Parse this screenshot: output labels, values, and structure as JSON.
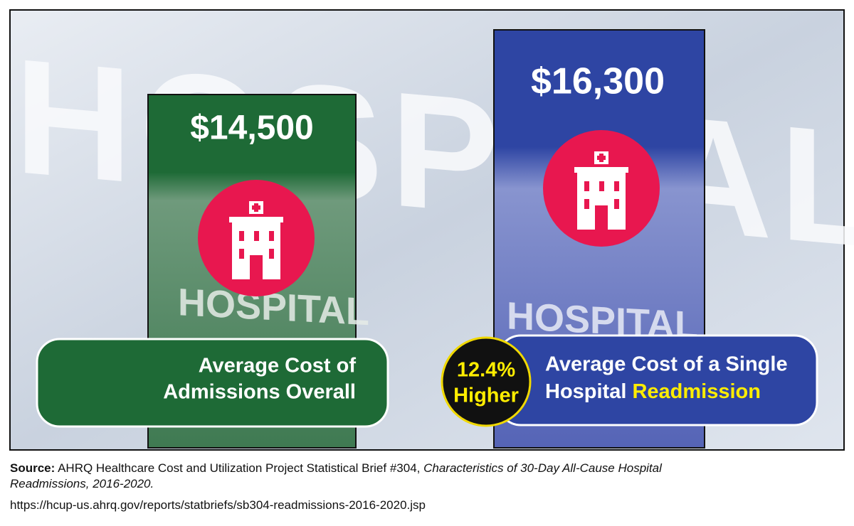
{
  "background_sign": "HOSPITAL",
  "panels": [
    {
      "amount": "$14,500",
      "label_lines": [
        "Average Cost of",
        "Admissions Overall"
      ]
    },
    {
      "amount": "$16,300",
      "label_lines": [
        "Average Cost of a Single",
        "Hospital"
      ],
      "highlight": "Readmission"
    }
  ],
  "badge": {
    "lines": [
      "12.4%",
      "Higher"
    ]
  },
  "source": {
    "lead": "Source:",
    "text": "AHRQ Healthcare Cost and Utilization Project Statistical Brief #304,",
    "title_line1": "Characteristics of 30-Day All-Cause Hospital",
    "title_line2": "Readmissions, 2016-2020.",
    "url": "https://hcup-us.ahrq.gov/reports/statbriefs/sb304-readmissions-2016-2020.jsp"
  }
}
